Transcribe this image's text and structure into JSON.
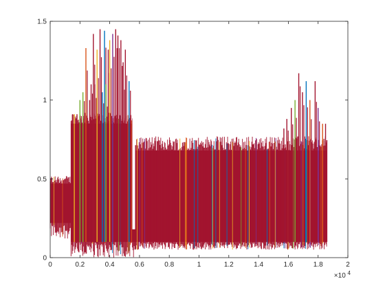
{
  "chart_data": {
    "type": "line",
    "title": "",
    "xlabel": "",
    "ylabel": "",
    "xlim": [
      0,
      20000
    ],
    "ylim": [
      0,
      1.5
    ],
    "x_exponent_label": "×10",
    "x_exponent_power": "4",
    "x_ticks": [
      {
        "value": 0,
        "label": "0"
      },
      {
        "value": 2000,
        "label": "0.2"
      },
      {
        "value": 4000,
        "label": "0.4"
      },
      {
        "value": 6000,
        "label": "0.6"
      },
      {
        "value": 8000,
        "label": "0.8"
      },
      {
        "value": 10000,
        "label": "1"
      },
      {
        "value": 12000,
        "label": "1.2"
      },
      {
        "value": 14000,
        "label": "1.4"
      },
      {
        "value": 16000,
        "label": "1.6"
      },
      {
        "value": 18000,
        "label": "1.8"
      },
      {
        "value": 20000,
        "label": "2"
      }
    ],
    "y_ticks": [
      {
        "value": 0,
        "label": "0"
      },
      {
        "value": 0.5,
        "label": "0.5"
      },
      {
        "value": 1,
        "label": "1"
      },
      {
        "value": 1.5,
        "label": "1.5"
      }
    ],
    "grid": false,
    "legend": "none",
    "series_colors": [
      "#0072BD",
      "#D95319",
      "#EDB120",
      "#7E2F8E",
      "#77AC30",
      "#A2142F"
    ],
    "segments": [
      {
        "x_start": 0,
        "x_end": 1400,
        "band_low": 0.22,
        "band_high": 0.47,
        "min": 0.12,
        "max": 0.52,
        "spikes": []
      },
      {
        "x_start": 1400,
        "x_end": 5600,
        "band_low": 0.1,
        "band_high": 0.85,
        "min": 0.0,
        "max": 0.92,
        "spikes": [
          {
            "x": 1500,
            "y": 0.91
          },
          {
            "x": 1620,
            "y": 0.91
          },
          {
            "x": 1800,
            "y": 0.91
          },
          {
            "x": 2000,
            "y": 1.0
          },
          {
            "x": 2200,
            "y": 1.05
          },
          {
            "x": 2400,
            "y": 1.33
          },
          {
            "x": 2650,
            "y": 1.0
          },
          {
            "x": 2750,
            "y": 1.1
          },
          {
            "x": 2900,
            "y": 1.42
          },
          {
            "x": 3000,
            "y": 1.1
          },
          {
            "x": 3150,
            "y": 1.32
          },
          {
            "x": 3350,
            "y": 1.45
          },
          {
            "x": 3500,
            "y": 1.05
          },
          {
            "x": 3650,
            "y": 1.44
          },
          {
            "x": 3750,
            "y": 1.1
          },
          {
            "x": 3900,
            "y": 1.32
          },
          {
            "x": 4000,
            "y": 1.38
          },
          {
            "x": 4200,
            "y": 1.42
          },
          {
            "x": 4400,
            "y": 1.45
          },
          {
            "x": 4550,
            "y": 1.41
          },
          {
            "x": 4750,
            "y": 1.38
          },
          {
            "x": 4900,
            "y": 1.24
          },
          {
            "x": 5050,
            "y": 1.32
          },
          {
            "x": 5300,
            "y": 1.12
          }
        ]
      },
      {
        "x_start": 5600,
        "x_end": 18600,
        "band_low": 0.1,
        "band_high": 0.68,
        "min": 0.05,
        "max": 0.77,
        "spikes": [
          {
            "x": 15700,
            "y": 0.82
          },
          {
            "x": 15900,
            "y": 0.88
          },
          {
            "x": 16200,
            "y": 0.95
          },
          {
            "x": 16450,
            "y": 1.0
          },
          {
            "x": 16700,
            "y": 1.17
          },
          {
            "x": 16950,
            "y": 1.05
          },
          {
            "x": 17200,
            "y": 1.12
          },
          {
            "x": 17450,
            "y": 1.0
          },
          {
            "x": 17800,
            "y": 1.12
          },
          {
            "x": 18000,
            "y": 0.95
          },
          {
            "x": 18300,
            "y": 0.85
          },
          {
            "x": 18500,
            "y": 0.85
          }
        ]
      }
    ]
  }
}
